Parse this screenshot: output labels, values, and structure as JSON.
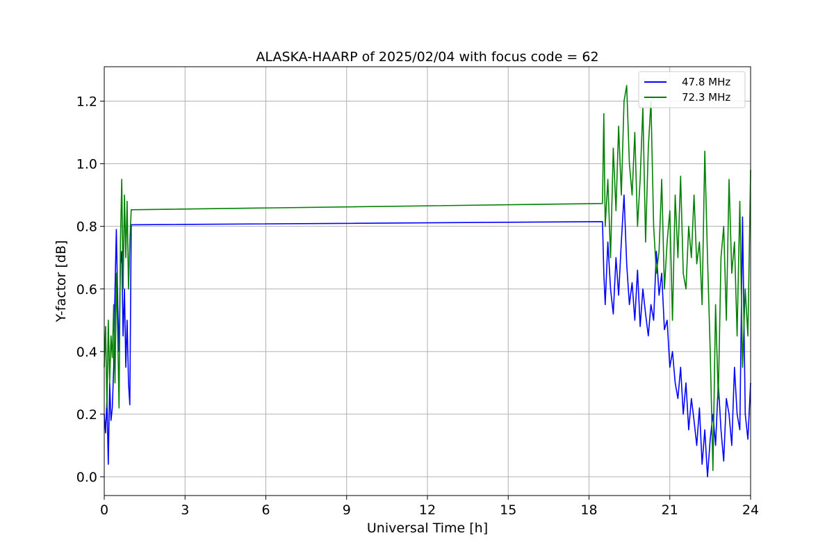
{
  "chart_data": {
    "type": "line",
    "title": "ALASKA-HAARP of 2025/02/04 with focus code = 62",
    "xlabel": "Universal Time [h]",
    "ylabel": "Y-factor [dB]",
    "xlim": [
      0,
      24
    ],
    "ylim": [
      -0.06,
      1.31
    ],
    "xticks": [
      0,
      3,
      6,
      9,
      12,
      15,
      18,
      21,
      24
    ],
    "xtick_labels": [
      "0",
      "3",
      "6",
      "9",
      "12",
      "15",
      "18",
      "21",
      "24"
    ],
    "yticks": [
      0.0,
      0.2,
      0.4,
      0.6,
      0.8,
      1.0,
      1.2
    ],
    "ytick_labels": [
      "0.0",
      "0.2",
      "0.4",
      "0.6",
      "0.8",
      "1.0",
      "1.2"
    ],
    "grid": true,
    "legend_position": "top-right",
    "series": [
      {
        "name": "47.8 MHz",
        "color": "#0000ff",
        "x": [
          0.0,
          0.05,
          0.1,
          0.15,
          0.2,
          0.25,
          0.3,
          0.35,
          0.4,
          0.45,
          0.5,
          0.55,
          0.6,
          0.65,
          0.7,
          0.75,
          0.8,
          0.85,
          0.9,
          0.95,
          1.0,
          18.5,
          18.55,
          18.6,
          18.7,
          18.8,
          18.9,
          19.0,
          19.1,
          19.2,
          19.3,
          19.4,
          19.5,
          19.6,
          19.7,
          19.8,
          19.9,
          20.0,
          20.1,
          20.2,
          20.3,
          20.4,
          20.5,
          20.6,
          20.7,
          20.8,
          20.9,
          21.0,
          21.1,
          21.2,
          21.3,
          21.4,
          21.5,
          21.6,
          21.7,
          21.8,
          21.9,
          22.0,
          22.1,
          22.2,
          22.3,
          22.4,
          22.5,
          22.6,
          22.7,
          22.8,
          22.9,
          23.0,
          23.1,
          23.2,
          23.3,
          23.4,
          23.5,
          23.6,
          23.7,
          23.8,
          23.9,
          24.0
        ],
        "y": [
          0.2,
          0.14,
          0.25,
          0.04,
          0.3,
          0.18,
          0.22,
          0.35,
          0.6,
          0.79,
          0.55,
          0.4,
          0.68,
          0.72,
          0.45,
          0.6,
          0.35,
          0.5,
          0.3,
          0.23,
          0.805,
          0.815,
          0.65,
          0.55,
          0.75,
          0.6,
          0.52,
          0.7,
          0.58,
          0.75,
          0.9,
          0.68,
          0.55,
          0.62,
          0.5,
          0.66,
          0.48,
          0.6,
          0.52,
          0.45,
          0.55,
          0.5,
          0.72,
          0.58,
          0.65,
          0.47,
          0.5,
          0.35,
          0.4,
          0.3,
          0.25,
          0.35,
          0.2,
          0.3,
          0.15,
          0.25,
          0.18,
          0.1,
          0.22,
          0.04,
          0.15,
          0.0,
          0.12,
          0.2,
          0.1,
          0.3,
          0.15,
          0.05,
          0.25,
          0.2,
          0.1,
          0.35,
          0.2,
          0.15,
          0.83,
          0.2,
          0.12,
          0.3
        ]
      },
      {
        "name": "72.3 MHz",
        "color": "#008000",
        "x": [
          0.0,
          0.05,
          0.1,
          0.15,
          0.2,
          0.25,
          0.3,
          0.35,
          0.4,
          0.45,
          0.5,
          0.55,
          0.6,
          0.65,
          0.7,
          0.75,
          0.8,
          0.85,
          0.9,
          0.95,
          1.0,
          18.5,
          18.55,
          18.6,
          18.7,
          18.8,
          18.9,
          19.0,
          19.1,
          19.2,
          19.3,
          19.4,
          19.5,
          19.6,
          19.7,
          19.8,
          19.9,
          20.0,
          20.1,
          20.2,
          20.3,
          20.4,
          20.5,
          20.6,
          20.7,
          20.8,
          20.9,
          21.0,
          21.1,
          21.2,
          21.3,
          21.4,
          21.5,
          21.6,
          21.7,
          21.8,
          21.9,
          22.0,
          22.1,
          22.2,
          22.3,
          22.4,
          22.5,
          22.6,
          22.7,
          22.8,
          22.9,
          23.0,
          23.1,
          23.2,
          23.3,
          23.4,
          23.5,
          23.6,
          23.7,
          23.8,
          23.9,
          24.0
        ],
        "y": [
          0.35,
          0.48,
          0.22,
          0.5,
          0.3,
          0.45,
          0.38,
          0.55,
          0.3,
          0.65,
          0.45,
          0.22,
          0.75,
          0.95,
          0.6,
          0.9,
          0.7,
          0.88,
          0.6,
          0.75,
          0.853,
          0.873,
          1.16,
          0.8,
          0.95,
          0.7,
          1.05,
          0.85,
          1.12,
          0.9,
          1.2,
          1.25,
          1.0,
          0.9,
          1.1,
          0.8,
          0.95,
          1.18,
          0.75,
          1.05,
          1.2,
          0.8,
          0.65,
          0.72,
          0.95,
          0.6,
          0.75,
          0.85,
          0.5,
          0.9,
          0.7,
          0.96,
          0.65,
          0.6,
          0.8,
          0.7,
          0.9,
          0.68,
          0.75,
          0.55,
          1.04,
          0.7,
          0.4,
          0.02,
          0.55,
          0.25,
          0.7,
          0.8,
          0.5,
          0.95,
          0.65,
          0.75,
          0.45,
          0.88,
          0.35,
          0.6,
          0.45,
          0.98
        ]
      }
    ]
  }
}
